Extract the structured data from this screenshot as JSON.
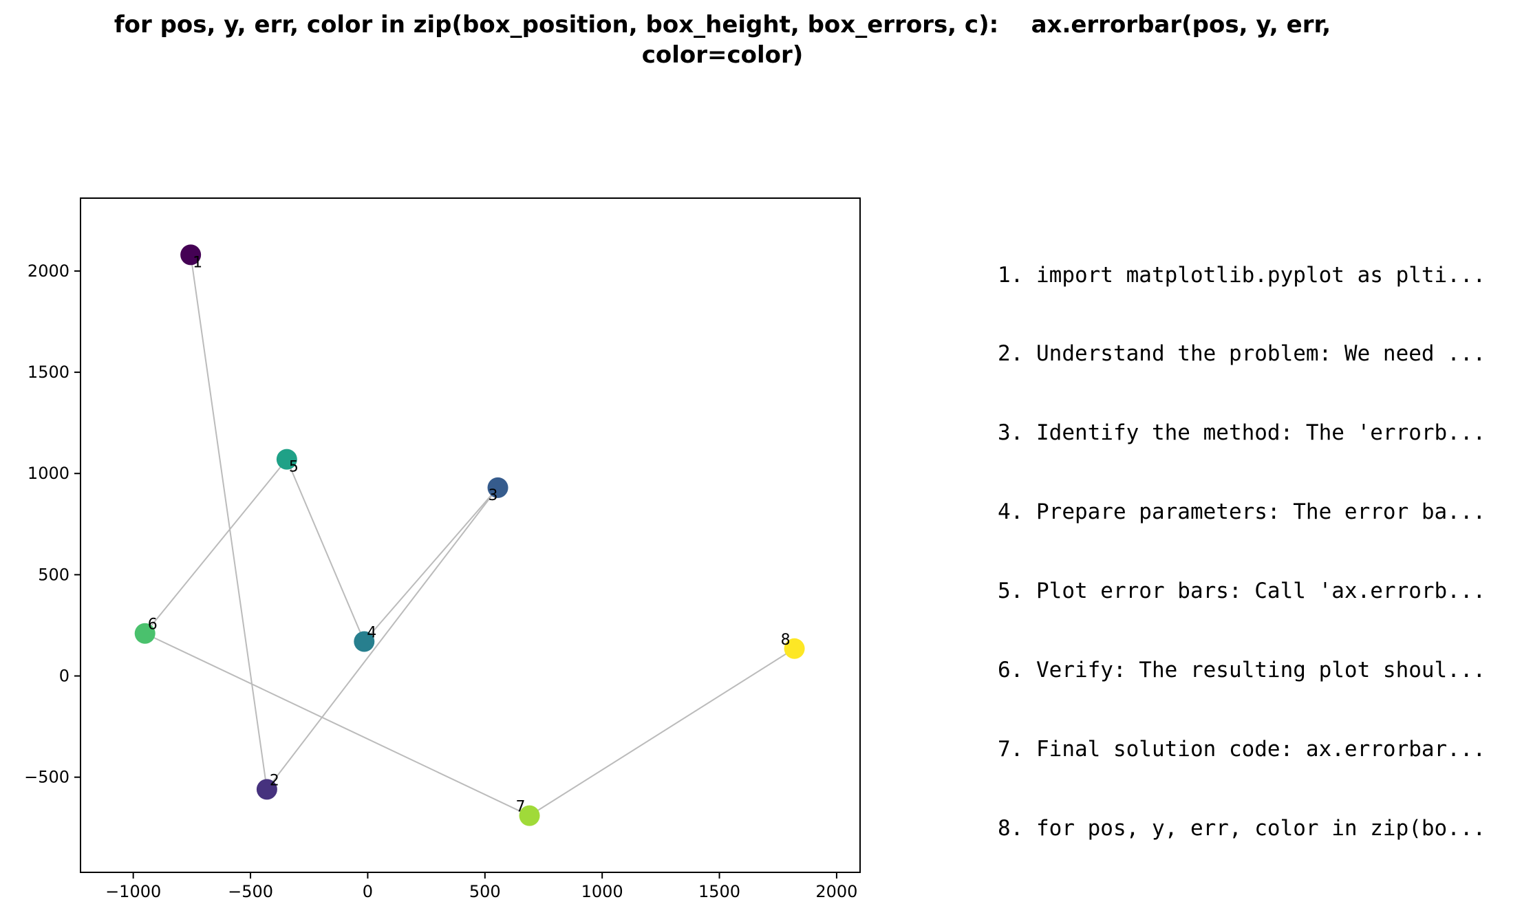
{
  "title": {
    "line1": "for pos, y, err, color in zip(box_position, box_height, box_errors, c):    ax.errorbar(pos, y, err,",
    "line2": "color=color)"
  },
  "steps": [
    "1. import matplotlib.pyplot as plti...",
    "2. Understand the problem: We need ...",
    "3. Identify the method: The 'errorb...",
    "4. Prepare parameters: The error ba...",
    "5. Plot error bars: Call 'ax.errorb...",
    "6. Verify: The resulting plot shoul...",
    "7. Final solution code: ax.errorbar...",
    "8. for pos, y, err, color in zip(bo..."
  ],
  "chart_data": {
    "type": "scatter",
    "title": "for pos, y, err, color in zip(box_position, box_height, box_errors, c):    ax.errorbar(pos, y, err, color=color)",
    "xlabel": "",
    "ylabel": "",
    "xlim": [
      -1225,
      2100
    ],
    "ylim": [
      -970,
      2360
    ],
    "xticks": [
      -1000,
      -500,
      0,
      500,
      1000,
      1500,
      2000
    ],
    "xtick_labels": [
      "−1000",
      "−500",
      "0",
      "500",
      "1000",
      "1500",
      "2000"
    ],
    "yticks": [
      -500,
      0,
      500,
      1000,
      1500,
      2000
    ],
    "ytick_labels": [
      "−500",
      "0",
      "500",
      "1000",
      "1500",
      "2000"
    ],
    "grid": false,
    "connecting_line_color": "#bbbbbb",
    "points": [
      {
        "label": "1",
        "x": -755,
        "y": 2080,
        "color": "#440154"
      },
      {
        "label": "2",
        "x": -430,
        "y": -560,
        "color": "#46327e"
      },
      {
        "label": "3",
        "x": 555,
        "y": 930,
        "color": "#365c8d"
      },
      {
        "label": "4",
        "x": -15,
        "y": 170,
        "color": "#277f8e"
      },
      {
        "label": "5",
        "x": -345,
        "y": 1070,
        "color": "#1fa187"
      },
      {
        "label": "6",
        "x": -950,
        "y": 210,
        "color": "#4ac16d"
      },
      {
        "label": "7",
        "x": 690,
        "y": -690,
        "color": "#a0da39"
      },
      {
        "label": "8",
        "x": 1820,
        "y": 135,
        "color": "#fde725"
      }
    ]
  }
}
